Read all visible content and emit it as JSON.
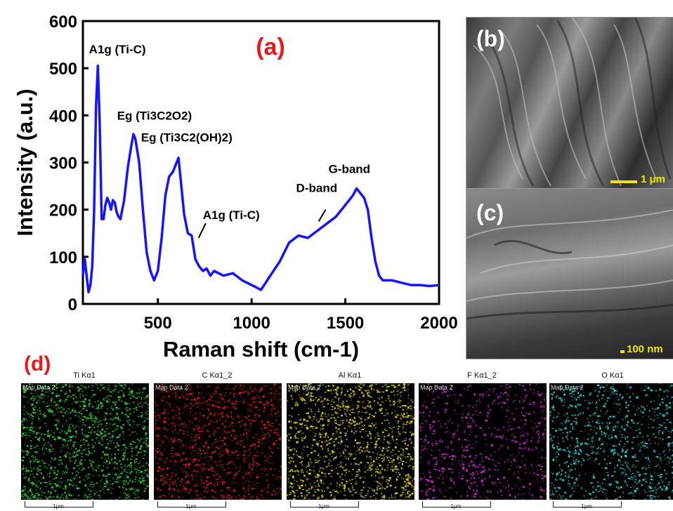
{
  "panel_a": {
    "label": "(a)",
    "label_color": "#e8191b",
    "line_color": "#1414ff"
  },
  "chart_data": {
    "type": "line",
    "xlabel": "Raman shift (cm-1)",
    "ylabel": "Intensity (a.u.)",
    "xlim": [
      100,
      2000
    ],
    "ylim": [
      0,
      600
    ],
    "xticks": [
      500,
      1000,
      1500,
      2000
    ],
    "yticks": [
      0,
      100,
      200,
      300,
      400,
      500,
      600
    ],
    "series": [
      {
        "x": [
          100,
          110,
          120,
          130,
          140,
          150,
          160,
          170,
          180,
          190,
          200,
          210,
          220,
          230,
          240,
          250,
          260,
          270,
          280,
          290,
          300,
          320,
          340,
          360,
          370,
          380,
          400,
          420,
          440,
          460,
          470,
          480,
          500,
          520,
          540,
          560,
          580,
          600,
          610,
          620,
          640,
          660,
          680,
          700,
          720,
          740,
          760,
          780,
          800,
          850,
          900,
          950,
          1000,
          1050,
          1100,
          1150,
          1200,
          1250,
          1300,
          1350,
          1400,
          1450,
          1500,
          1540,
          1560,
          1580,
          1600,
          1620,
          1640,
          1660,
          1680,
          1700,
          1750,
          1800,
          1850,
          1900,
          1950,
          2000
        ],
        "values": [
          60,
          95,
          60,
          25,
          40,
          80,
          200,
          420,
          505,
          380,
          180,
          180,
          210,
          225,
          215,
          200,
          220,
          215,
          195,
          185,
          180,
          220,
          290,
          340,
          360,
          350,
          300,
          200,
          110,
          70,
          60,
          50,
          70,
          140,
          230,
          270,
          280,
          300,
          310,
          270,
          190,
          150,
          145,
          95,
          80,
          70,
          75,
          60,
          70,
          60,
          65,
          50,
          40,
          30,
          60,
          90,
          130,
          145,
          140,
          155,
          170,
          185,
          210,
          230,
          245,
          235,
          225,
          200,
          140,
          90,
          60,
          50,
          50,
          45,
          40,
          40,
          38,
          40
        ]
      }
    ],
    "annotations": [
      {
        "text": "A1g (Ti-C)",
        "x": 185,
        "y": 505
      },
      {
        "text": "Eg (Ti3C2O2)",
        "x": 365,
        "y": 358
      },
      {
        "text": "Eg (Ti3C2(OH)2)",
        "x": 605,
        "y": 315
      },
      {
        "text": "A1g (Ti-C)",
        "x": 710,
        "y": 165
      },
      {
        "text": "D-band",
        "x": 1350,
        "y": 190
      },
      {
        "text": "G-band",
        "x": 1560,
        "y": 248
      }
    ]
  },
  "panel_b": {
    "label": "(b)",
    "scale": "1 μm"
  },
  "panel_c": {
    "label": "(c)",
    "scale": "100 nm"
  },
  "panel_d": {
    "label": "(d)",
    "label_color": "#e8191b",
    "maps": [
      {
        "title": "Ti Kα1",
        "tag": "Map Data 2",
        "color": "#2ed12e",
        "scale": "1μm"
      },
      {
        "title": "C Kα1_2",
        "tag": "Map Data 2",
        "color": "#e01818",
        "scale": "1μm"
      },
      {
        "title": "Al Kα1",
        "tag": "Map Data 2",
        "color": "#e0d21a",
        "scale": "1μm"
      },
      {
        "title": "F Kα1_2",
        "tag": "Map Data 2",
        "color": "#d624d6",
        "scale": "1μm"
      },
      {
        "title": "O Kα1",
        "tag": "Map Data 2",
        "color": "#22d8d8",
        "scale": "1μm"
      }
    ]
  }
}
